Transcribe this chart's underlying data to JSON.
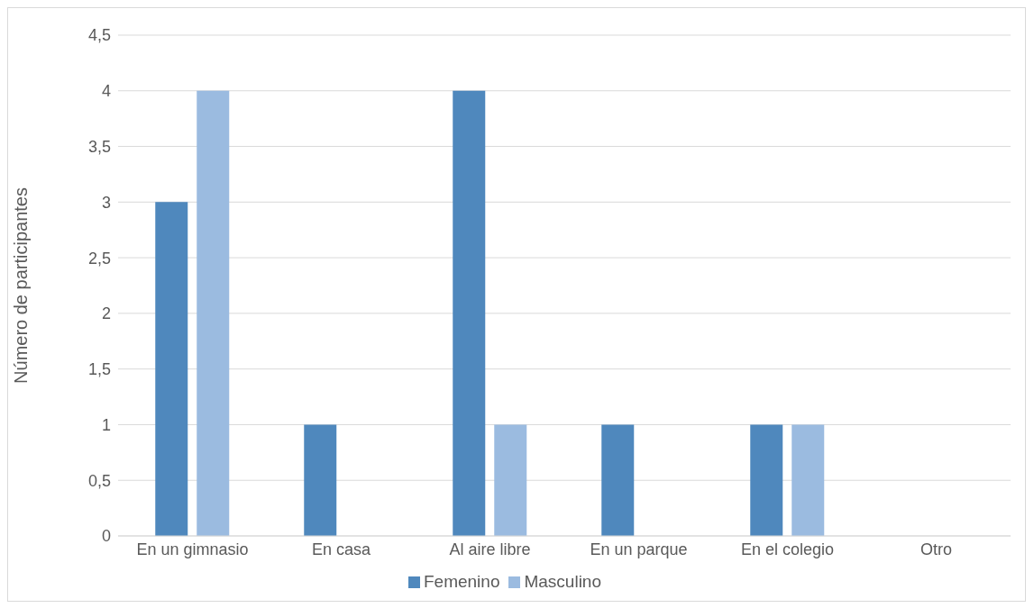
{
  "chart_data": {
    "type": "bar",
    "ylabel": "Número de participantes",
    "categories": [
      "En un gimnasio",
      "En casa",
      "Al aire libre",
      "En un parque",
      "En el colegio",
      "Otro"
    ],
    "series": [
      {
        "name": "Femenino",
        "color": "#4f88bd",
        "values": [
          3,
          1,
          4,
          1,
          1,
          0
        ]
      },
      {
        "name": "Masculino",
        "color": "#9bbbe0",
        "values": [
          4,
          0,
          1,
          0,
          1,
          0
        ]
      }
    ],
    "ylim": [
      0,
      4.5
    ],
    "yticks": [
      0,
      {
        "value": 0.5,
        "label": "0,5"
      },
      1,
      {
        "value": 1.5,
        "label": "1,5"
      },
      2,
      {
        "value": 2.5,
        "label": "2,5"
      },
      3,
      {
        "value": 3.5,
        "label": "3,5"
      },
      4,
      {
        "value": 4.5,
        "label": "4,5"
      }
    ],
    "grid": "y",
    "legend": "bottom"
  }
}
